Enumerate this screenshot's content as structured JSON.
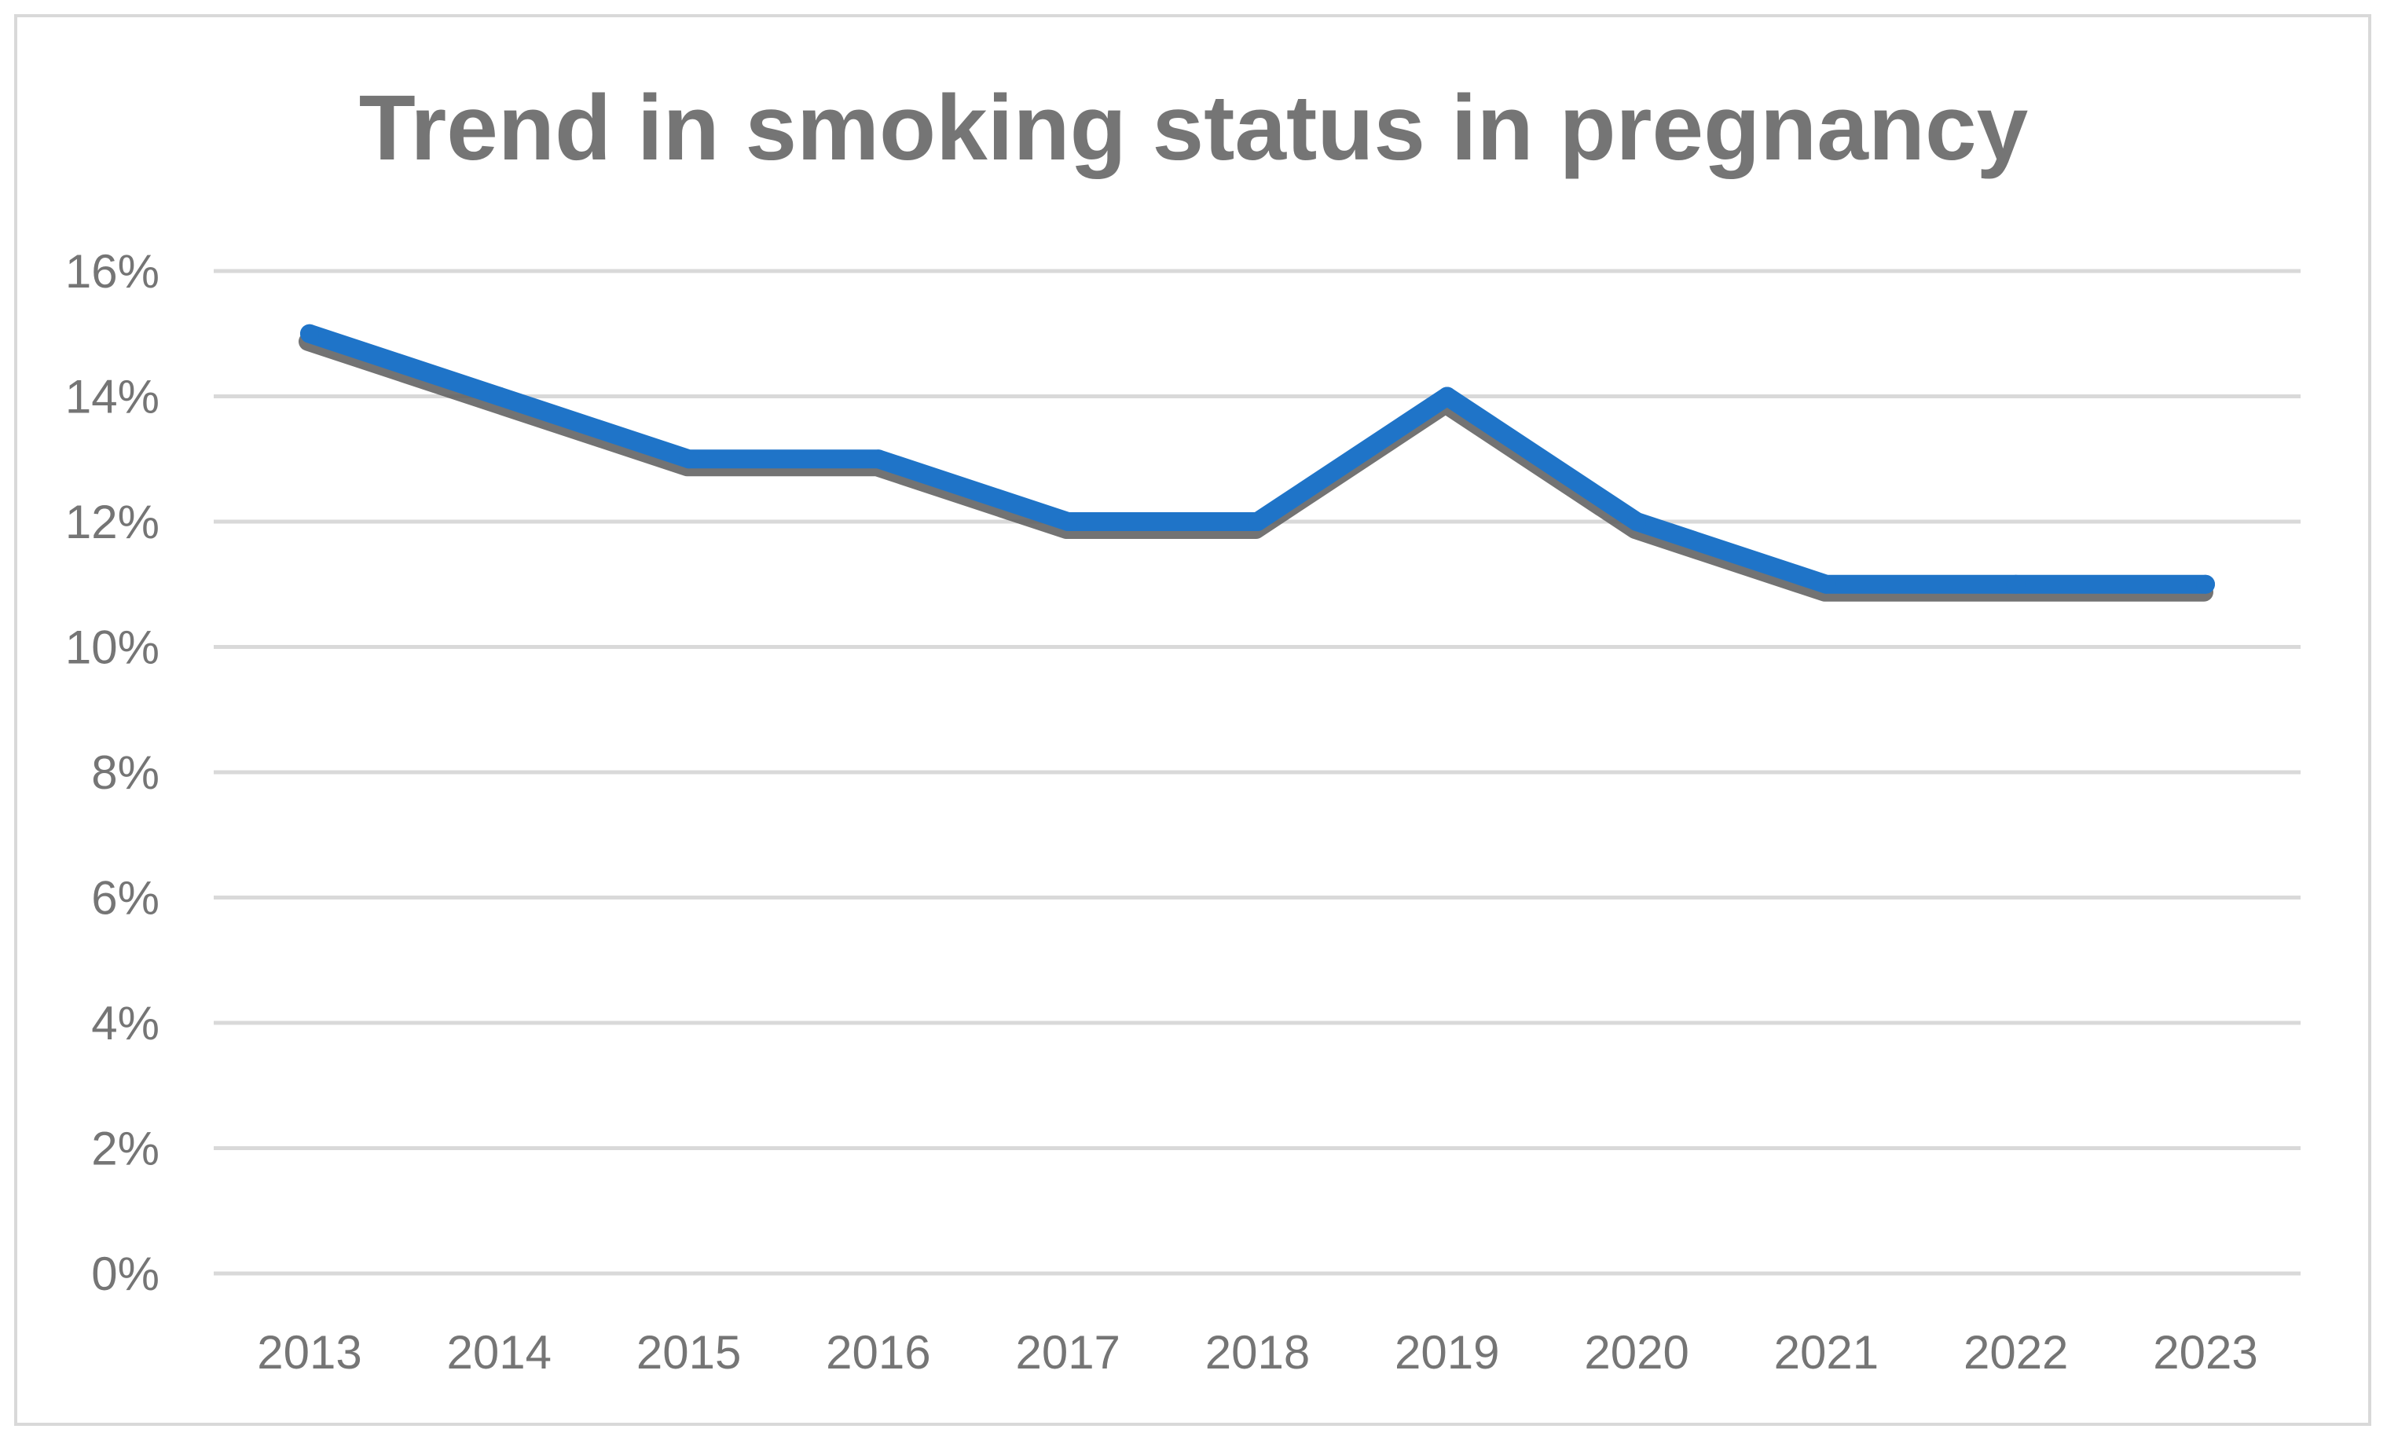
{
  "chart_data": {
    "type": "line",
    "title": "Trend in smoking status in pregnancy",
    "xlabel": "",
    "ylabel": "",
    "categories": [
      "2013",
      "2014",
      "2015",
      "2016",
      "2017",
      "2018",
      "2019",
      "2020",
      "2021",
      "2022",
      "2023"
    ],
    "series": [
      {
        "values": [
          15,
          14,
          13,
          13,
          12,
          12,
          14,
          12,
          11,
          11,
          11
        ],
        "color": "#1f74c8",
        "shadow_color": "#5a5a5a"
      }
    ],
    "ylim": [
      0,
      16
    ],
    "y_ticks": [
      0,
      2,
      4,
      6,
      8,
      10,
      12,
      14,
      16
    ],
    "y_tick_labels": [
      "0%",
      "2%",
      "4%",
      "6%",
      "8%",
      "10%",
      "12%",
      "14%",
      "16%"
    ],
    "value_unit": "%",
    "grid": true,
    "gridline_color": "#d9d9d9",
    "text_color": "#757575",
    "legend": "none"
  }
}
